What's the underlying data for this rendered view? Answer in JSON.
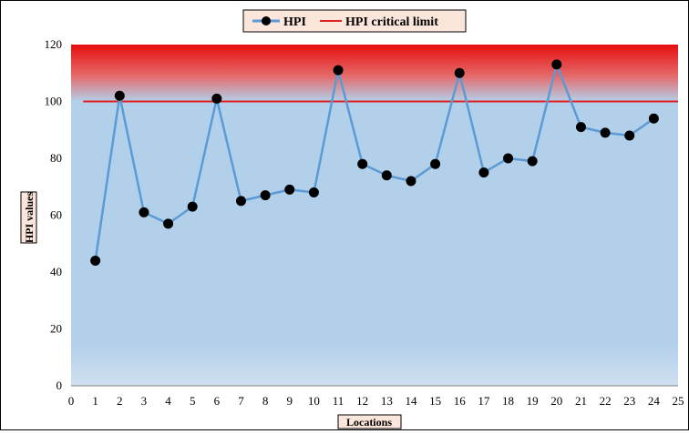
{
  "chart_data": {
    "type": "line",
    "x": [
      1,
      2,
      3,
      4,
      5,
      6,
      7,
      8,
      9,
      10,
      11,
      12,
      13,
      14,
      15,
      16,
      17,
      18,
      19,
      20,
      21,
      22,
      23,
      24
    ],
    "series": [
      {
        "name": "HPI",
        "values": [
          44,
          102,
          61,
          57,
          63,
          101,
          65,
          67,
          69,
          68,
          111,
          78,
          74,
          72,
          78,
          110,
          75,
          80,
          79,
          113,
          91,
          89,
          88,
          94
        ],
        "color": "#5b9bd5"
      },
      {
        "name": "HPI critical limit",
        "values": [
          100,
          100
        ],
        "x": [
          0.5,
          25
        ],
        "color": "#e02020"
      }
    ],
    "xlabel": "Locations",
    "ylabel": "HPI values",
    "xlim": [
      0,
      25
    ],
    "ylim": [
      0,
      120
    ],
    "xticks": [
      "0",
      "1",
      "2",
      "3",
      "4",
      "5",
      "6",
      "7",
      "8",
      "9",
      "10",
      "11",
      "12",
      "13",
      "14",
      "15",
      "16",
      "17",
      "18",
      "19",
      "20",
      "21",
      "22",
      "23",
      "24",
      "25"
    ],
    "yticks": [
      "0",
      "20",
      "40",
      "60",
      "80",
      "100",
      "120"
    ],
    "legend_position": "top-center",
    "grid": false,
    "colors": {
      "background_top": "#e81010",
      "background_main": "#b3d0ea",
      "marker": "#000000"
    }
  }
}
